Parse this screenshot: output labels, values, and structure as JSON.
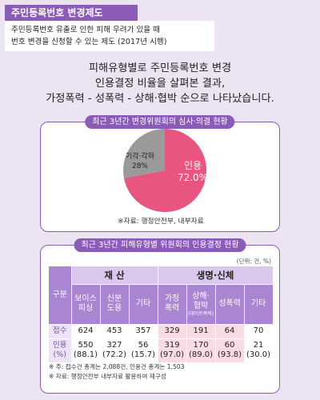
{
  "header": {
    "tag": "주민등록번호 변경제도",
    "desc_line1": "주민등록번호 유출로 인한 피해 우려가 있을 때",
    "desc_line2": "번호 변경을 신청할 수 있는 제도 (2017년 시행)"
  },
  "headline": {
    "line1": "피해유형별로 주민등록번호 변경",
    "line2": "인용결정 비율을 살펴본 결과,",
    "line3": "가정폭력 - 성폭력 - 상해·협박 순으로 나타났습니다."
  },
  "pie_panel": {
    "title": "최근 3년간 변경위원회의 심사·의결 현황",
    "source": "※자료: 행정안전부, 내부자료"
  },
  "table_panel": {
    "title": "최근 3년간 피해유형별 위원회의 인용결정 현황",
    "unit": "(단위: 건, %)",
    "note1": "※ 주: 접수건 총계는 2,088건, 인용건 총계는 1,503",
    "note2": "※ 자료: 행정안전부 내부자료 활용하여 재구성"
  },
  "colors": {
    "accent": "#8a5cb8",
    "pie_approved": "#e8557f",
    "pie_rejected": "#9a9a9a",
    "highlight": "#f9dbe3"
  },
  "chart_data": [
    {
      "type": "pie",
      "title": "최근 3년간 변경위원회의 심사·의결 현황",
      "slices": [
        {
          "name": "인용",
          "label": "인용",
          "value": 72.0,
          "value_label": "72.0%",
          "color": "#e8557f"
        },
        {
          "name": "기각·각하",
          "label": "기각·각하",
          "value": 28,
          "value_label": "28%",
          "color": "#9a9a9a"
        }
      ]
    },
    {
      "type": "table",
      "title": "최근 3년간 피해유형별 위원회의 인용결정 현황",
      "row_header": "구분",
      "groups": [
        {
          "name": "재 산",
          "span": 3
        },
        {
          "name": "생명·신체",
          "span": 4
        }
      ],
      "columns": [
        {
          "label": "보이스\n피싱",
          "sub": ""
        },
        {
          "label": "신분\n도용",
          "sub": ""
        },
        {
          "label": "기타",
          "sub": ""
        },
        {
          "label": "가정\n폭력",
          "sub": ""
        },
        {
          "label": "상해·\n협박",
          "sub": "(데이트폭력)"
        },
        {
          "label": "성폭력",
          "sub": ""
        },
        {
          "label": "기타",
          "sub": ""
        }
      ],
      "rows": [
        {
          "label": "접수",
          "values": [
            "624",
            "453",
            "357",
            "329",
            "191",
            "64",
            "70"
          ]
        },
        {
          "label": "인용\n(%)",
          "values": [
            "550\n(88.1)",
            "327\n(72.2)",
            "56\n(15.7)",
            "319\n(97.0)",
            "170\n(89.0)",
            "60\n(93.8)",
            "21\n(30.0)"
          ]
        }
      ],
      "highlight_columns": [
        3,
        4,
        5
      ]
    }
  ]
}
